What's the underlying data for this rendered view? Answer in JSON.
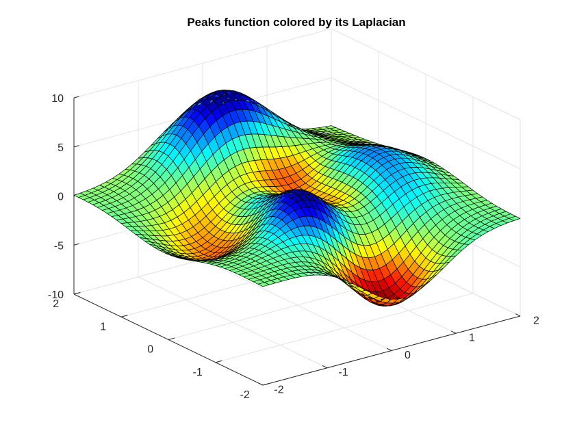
{
  "chart_data": {
    "type": "surface",
    "title": "Peaks function colored by its Laplacian",
    "xlabel": "",
    "ylabel": "",
    "zlabel": "",
    "function": "peaks",
    "color_data": "Laplacian of surface",
    "colormap": "jet",
    "xlim": [
      -2,
      2
    ],
    "ylim": [
      -2,
      2
    ],
    "zlim": [
      -10,
      10
    ],
    "grid": true,
    "box": false,
    "mesh_size": 41,
    "x_ticks": [
      {
        "value": -2,
        "label": "-2"
      },
      {
        "value": -1,
        "label": "-1"
      },
      {
        "value": 0,
        "label": "0"
      },
      {
        "value": 1,
        "label": "1"
      },
      {
        "value": 2,
        "label": "2"
      }
    ],
    "y_ticks": [
      {
        "value": -2,
        "label": "-2"
      },
      {
        "value": -1,
        "label": "-1"
      },
      {
        "value": 0,
        "label": "0"
      },
      {
        "value": 1,
        "label": "1"
      },
      {
        "value": 2,
        "label": "2"
      }
    ],
    "z_ticks": [
      {
        "value": -10,
        "label": "-10"
      },
      {
        "value": -5,
        "label": "-5"
      },
      {
        "value": 0,
        "label": "0"
      },
      {
        "value": 5,
        "label": "5"
      },
      {
        "value": 10,
        "label": "10"
      }
    ],
    "extrema": [
      {
        "kind": "max",
        "x": 0,
        "y": 1.6,
        "z": 8.1
      },
      {
        "kind": "local-max",
        "x": -0.46,
        "y": -0.63,
        "z": 3.8
      },
      {
        "kind": "min",
        "x": 0.23,
        "y": -1.63,
        "z": -6.5
      }
    ]
  },
  "colors": {
    "grid": "#e3e3e3",
    "axis": "#262626",
    "edges": "#000000",
    "background": "#ffffff"
  }
}
